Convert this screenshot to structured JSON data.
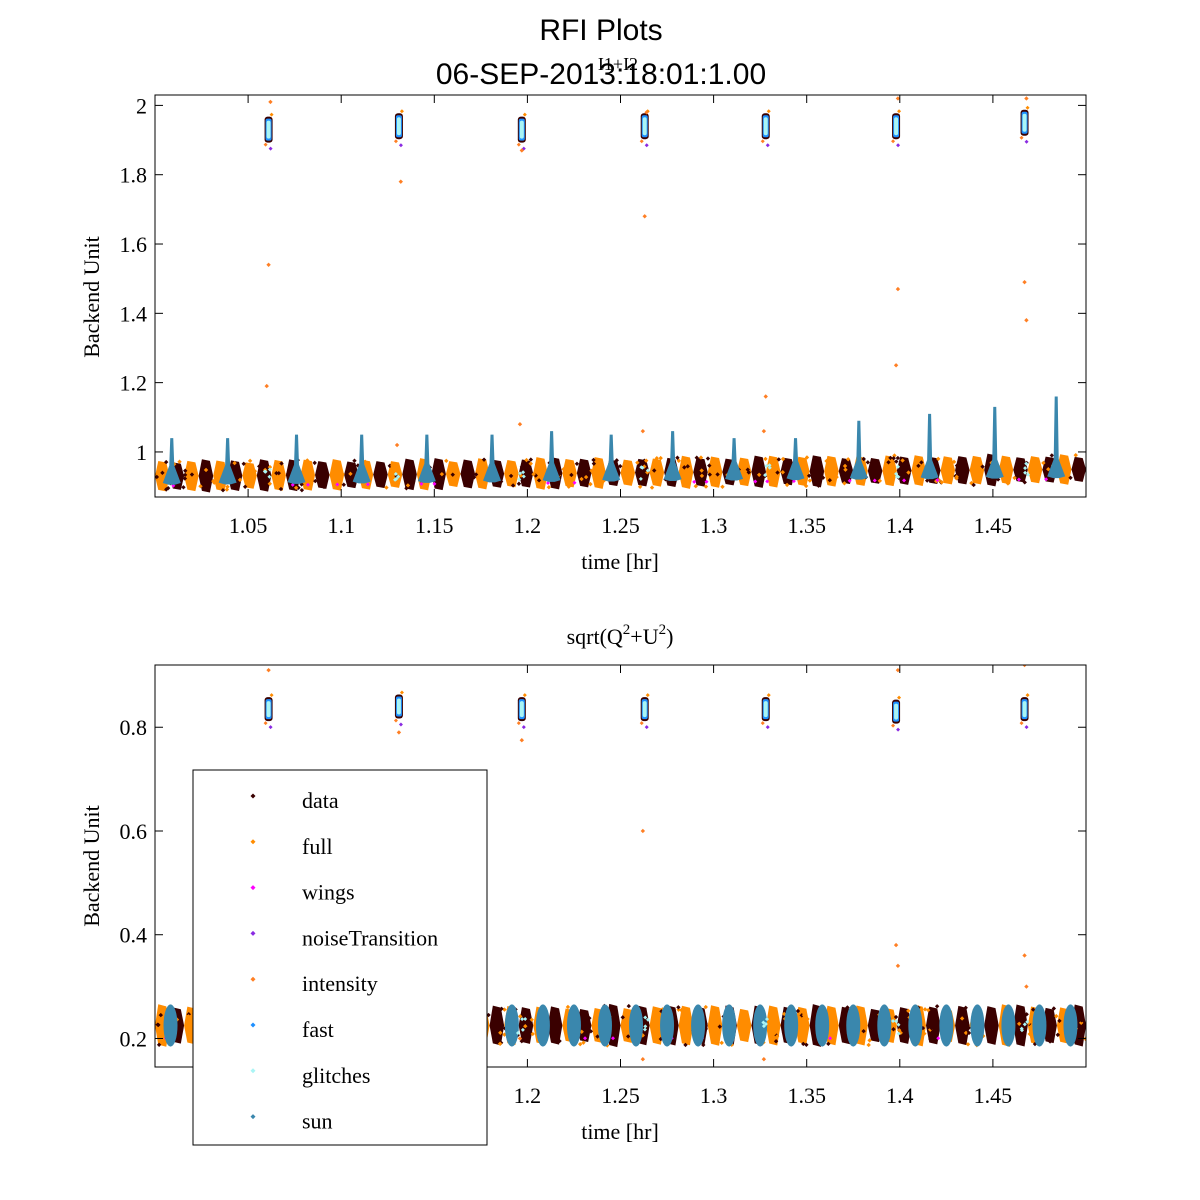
{
  "figure": {
    "title_line1": "RFI Plots",
    "title_line2": "06-SEP-2013:18:01:1.00"
  },
  "colors": {
    "data": "#3a0000",
    "full": "#ff8c00",
    "wings": "#ff00ff",
    "noiseTransition": "#8a2be2",
    "intensity": "#ff7f24",
    "fast": "#1e90ff",
    "glitches": "#aaf5f5",
    "sun": "#3a87ad"
  },
  "chart_data": [
    {
      "type": "scatter",
      "title": "I1+I2",
      "xlabel": "time [hr]",
      "ylabel": "Backend Unit",
      "xlim": [
        1.0,
        1.5
      ],
      "ylim": [
        0.87,
        2.03
      ],
      "xticks": [
        1.05,
        1.1,
        1.15,
        1.2,
        1.25,
        1.3,
        1.35,
        1.4,
        1.45
      ],
      "xtick_labels": [
        "1.05",
        "1.1",
        "1.15",
        "1.2",
        "1.25",
        "1.3",
        "1.35",
        "1.4",
        "1.45"
      ],
      "yticks": [
        1.0,
        1.2,
        1.4,
        1.6,
        1.8,
        2.0
      ],
      "ytick_labels": [
        "1",
        "1.2",
        "1.4",
        "1.6",
        "1.8",
        "2"
      ],
      "baseline": {
        "start": 0.93,
        "end": 0.95,
        "spread": 0.04
      },
      "sun_peaks": [
        {
          "x": 1.009,
          "y": 1.04
        },
        {
          "x": 1.039,
          "y": 1.04
        },
        {
          "x": 1.076,
          "y": 1.05
        },
        {
          "x": 1.111,
          "y": 1.05
        },
        {
          "x": 1.146,
          "y": 1.05
        },
        {
          "x": 1.181,
          "y": 1.05
        },
        {
          "x": 1.213,
          "y": 1.06
        },
        {
          "x": 1.245,
          "y": 1.05
        },
        {
          "x": 1.278,
          "y": 1.06
        },
        {
          "x": 1.311,
          "y": 1.04
        },
        {
          "x": 1.344,
          "y": 1.04
        },
        {
          "x": 1.378,
          "y": 1.09
        },
        {
          "x": 1.416,
          "y": 1.11
        },
        {
          "x": 1.451,
          "y": 1.13
        },
        {
          "x": 1.484,
          "y": 1.16
        }
      ],
      "cal_clusters": [
        {
          "x": 1.061,
          "y": 1.93
        },
        {
          "x": 1.131,
          "y": 1.94
        },
        {
          "x": 1.197,
          "y": 1.93
        },
        {
          "x": 1.263,
          "y": 1.94
        },
        {
          "x": 1.328,
          "y": 1.94
        },
        {
          "x": 1.398,
          "y": 1.94
        },
        {
          "x": 1.467,
          "y": 1.95
        }
      ],
      "outliers": [
        {
          "x": 1.061,
          "y": 1.54
        },
        {
          "x": 1.06,
          "y": 1.19
        },
        {
          "x": 1.062,
          "y": 2.01
        },
        {
          "x": 1.132,
          "y": 1.78
        },
        {
          "x": 1.13,
          "y": 1.02
        },
        {
          "x": 1.196,
          "y": 1.08
        },
        {
          "x": 1.197,
          "y": 1.87
        },
        {
          "x": 1.263,
          "y": 1.68
        },
        {
          "x": 1.262,
          "y": 1.06
        },
        {
          "x": 1.264,
          "y": 1.98
        },
        {
          "x": 1.328,
          "y": 1.16
        },
        {
          "x": 1.327,
          "y": 1.06
        },
        {
          "x": 1.399,
          "y": 1.47
        },
        {
          "x": 1.398,
          "y": 1.25
        },
        {
          "x": 1.399,
          "y": 2.02
        },
        {
          "x": 1.467,
          "y": 1.49
        },
        {
          "x": 1.468,
          "y": 1.38
        },
        {
          "x": 1.468,
          "y": 2.02
        }
      ]
    },
    {
      "type": "scatter",
      "title": "sqrt(Q²+U²)",
      "title_base_1": "sqrt(Q",
      "title_sup_1": "2",
      "title_mid": "+U",
      "title_sup_2": "2",
      "title_end": ")",
      "xlabel": "time [hr]",
      "ylabel": "Backend Unit",
      "xlim": [
        1.0,
        1.5
      ],
      "ylim": [
        0.145,
        0.92
      ],
      "xticks": [
        1.2,
        1.25,
        1.3,
        1.35,
        1.4,
        1.45
      ],
      "xtick_labels": [
        "1.2",
        "1.25",
        "1.3",
        "1.35",
        "1.4",
        "1.45"
      ],
      "yticks": [
        0.2,
        0.4,
        0.6,
        0.8
      ],
      "ytick_labels": [
        "0.2",
        "0.4",
        "0.6",
        "0.8"
      ],
      "baseline": {
        "start": 0.225,
        "end": 0.225,
        "spread": 0.035
      },
      "cal_clusters": [
        {
          "x": 1.061,
          "y": 0.835
        },
        {
          "x": 1.131,
          "y": 0.84
        },
        {
          "x": 1.197,
          "y": 0.835
        },
        {
          "x": 1.263,
          "y": 0.835
        },
        {
          "x": 1.328,
          "y": 0.835
        },
        {
          "x": 1.398,
          "y": 0.83
        },
        {
          "x": 1.467,
          "y": 0.835
        }
      ],
      "outliers": [
        {
          "x": 1.262,
          "y": 0.6
        },
        {
          "x": 1.398,
          "y": 0.38
        },
        {
          "x": 1.399,
          "y": 0.34
        },
        {
          "x": 1.467,
          "y": 0.36
        },
        {
          "x": 1.468,
          "y": 0.3
        },
        {
          "x": 1.131,
          "y": 0.79
        },
        {
          "x": 1.197,
          "y": 0.775
        },
        {
          "x": 1.327,
          "y": 0.16
        },
        {
          "x": 1.196,
          "y": 0.2
        },
        {
          "x": 1.262,
          "y": 0.16
        },
        {
          "x": 1.061,
          "y": 0.91
        },
        {
          "x": 1.399,
          "y": 0.91
        },
        {
          "x": 1.467,
          "y": 0.92
        }
      ]
    }
  ],
  "legend": {
    "entries": [
      {
        "label": "data",
        "color_key": "data"
      },
      {
        "label": "full",
        "color_key": "full"
      },
      {
        "label": "wings",
        "color_key": "wings"
      },
      {
        "label": "noiseTransition",
        "color_key": "noiseTransition"
      },
      {
        "label": "intensity",
        "color_key": "intensity"
      },
      {
        "label": "fast",
        "color_key": "fast"
      },
      {
        "label": "glitches",
        "color_key": "glitches"
      },
      {
        "label": "sun",
        "color_key": "sun"
      }
    ]
  }
}
